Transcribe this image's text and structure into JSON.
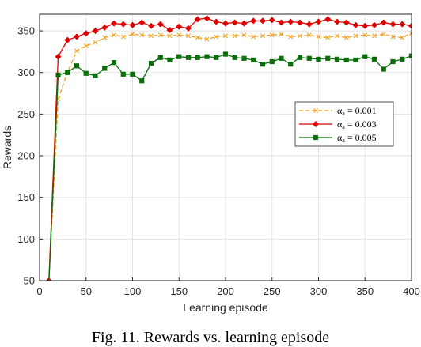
{
  "caption": "Fig. 11. Rewards vs. learning episode",
  "chart_data": {
    "type": "line",
    "title": "",
    "xlabel": "Learning episode",
    "ylabel": "Rewards",
    "xlim": [
      0,
      400
    ],
    "ylim": [
      50,
      370
    ],
    "xticks": [
      0,
      50,
      100,
      150,
      200,
      250,
      300,
      350,
      400
    ],
    "yticks": [
      50,
      100,
      150,
      200,
      250,
      300,
      350
    ],
    "grid": true,
    "legend_position": "right-middle",
    "x": [
      10,
      20,
      30,
      40,
      50,
      60,
      70,
      80,
      90,
      100,
      110,
      120,
      130,
      140,
      150,
      160,
      170,
      180,
      190,
      200,
      210,
      220,
      230,
      240,
      250,
      260,
      270,
      280,
      290,
      300,
      310,
      320,
      330,
      340,
      350,
      360,
      370,
      380,
      390,
      400
    ],
    "series": [
      {
        "name": "αa = 0.001",
        "legend_main": "α",
        "legend_sub": "a",
        "legend_value": " = 0.001",
        "color": "#f0a020",
        "dash": "5,3",
        "marker": "x",
        "values": [
          48,
          268,
          300,
          326,
          332,
          336,
          342,
          345,
          343,
          346,
          345,
          344,
          345,
          344,
          345,
          344,
          342,
          340,
          343,
          344,
          344,
          345,
          343,
          344,
          345,
          346,
          343,
          344,
          345,
          343,
          342,
          344,
          342,
          344,
          345,
          344,
          346,
          343,
          342,
          347
        ]
      },
      {
        "name": "αa = 0.003",
        "legend_main": "α",
        "legend_sub": "a",
        "legend_value": " = 0.003",
        "color": "#e00000",
        "dash": "",
        "marker": "diamond",
        "values": [
          50,
          319,
          339,
          343,
          347,
          350,
          354,
          359,
          358,
          357,
          360,
          356,
          358,
          351,
          355,
          353,
          364,
          365,
          361,
          359,
          360,
          359,
          362,
          362,
          363,
          360,
          361,
          360,
          358,
          361,
          364,
          361,
          360,
          357,
          356,
          357,
          360,
          358,
          358,
          356
        ]
      },
      {
        "name": "αa = 0.005",
        "legend_main": "α",
        "legend_sub": "a",
        "legend_value": " = 0.005",
        "color": "#0a6e0a",
        "dash": "",
        "marker": "square",
        "values": [
          46,
          297,
          300,
          308,
          299,
          296,
          305,
          312,
          298,
          298,
          290,
          311,
          318,
          315,
          319,
          318,
          318,
          319,
          318,
          322,
          318,
          317,
          315,
          310,
          313,
          317,
          310,
          318,
          317,
          316,
          317,
          316,
          315,
          315,
          319,
          316,
          304,
          313,
          316,
          320
        ]
      }
    ]
  }
}
